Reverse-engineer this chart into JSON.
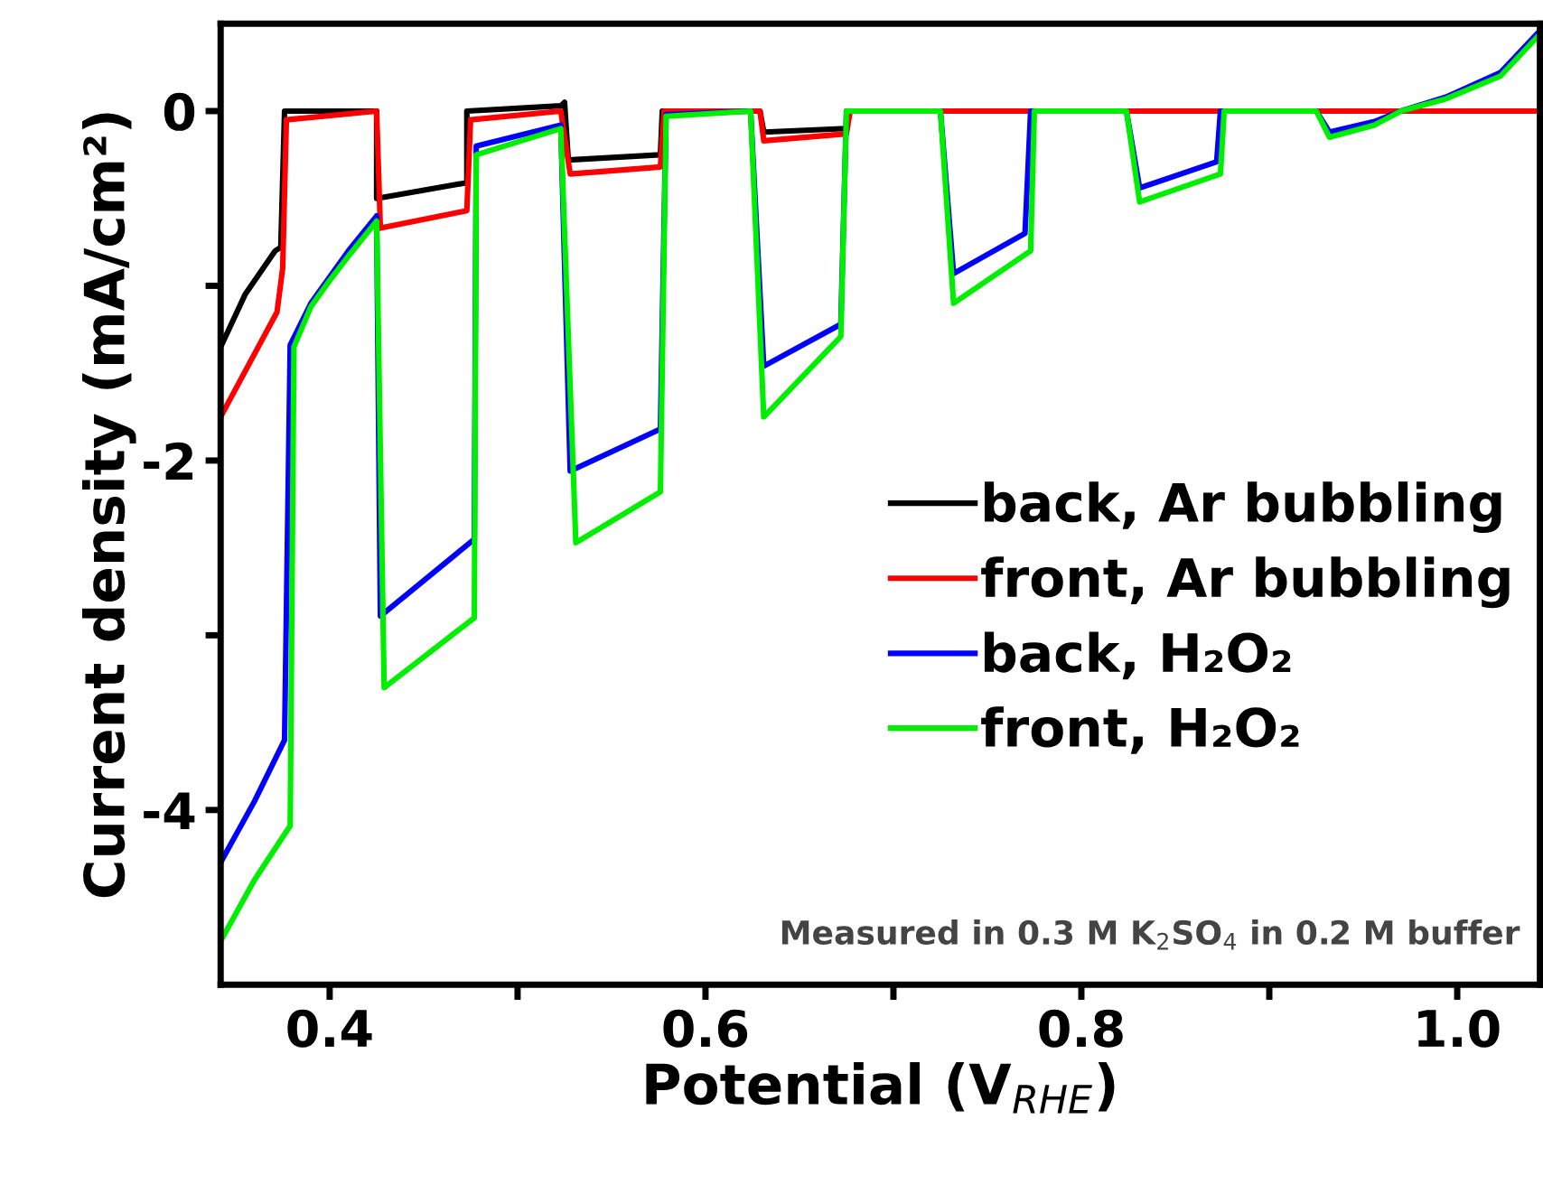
{
  "chart_data": {
    "type": "line",
    "xlabel": "Potential (V$_{RHE}$)",
    "ylabel": "Current density (mA/cm²)",
    "xlim": [
      0.342,
      1.044
    ],
    "ylim": [
      -5,
      0.5
    ],
    "xticks": [
      {
        "value": 0.4,
        "label": "0.4"
      },
      {
        "value": 0.5,
        "label": null
      },
      {
        "value": 0.6,
        "label": "0.6"
      },
      {
        "value": 0.7,
        "label": null
      },
      {
        "value": 0.8,
        "label": "0.8"
      },
      {
        "value": 0.9,
        "label": null
      },
      {
        "value": 1.0,
        "label": "1.0"
      }
    ],
    "yticks": [
      {
        "value": 0,
        "label": "0"
      },
      {
        "value": -1,
        "label": null
      },
      {
        "value": -2,
        "label": "-2"
      },
      {
        "value": -3,
        "label": null
      },
      {
        "value": -4,
        "label": "-4"
      }
    ],
    "grid": false,
    "legend": "right",
    "marker": "none",
    "line_style": "solid",
    "annotations": [
      "Measured in 0.3 M K$_{2}$SO$_{4}$ in 0.2 M buffer"
    ],
    "series": [
      {
        "name": "back, Ar bubbling",
        "color": "#000000",
        "x": [
          0.342,
          0.355,
          0.371,
          0.374,
          0.376,
          0.425,
          0.425,
          0.473,
          0.473,
          0.523,
          0.525,
          0.527,
          0.576,
          0.577,
          0.629,
          0.631,
          0.675,
          0.676,
          1.044
        ],
        "values": [
          -1.35,
          -1.05,
          -0.8,
          -0.78,
          0,
          0,
          -0.5,
          -0.41,
          0,
          0.03,
          0.05,
          -0.28,
          -0.25,
          0,
          0,
          -0.12,
          -0.1,
          0,
          0
        ]
      },
      {
        "name": "front, Ar bubbling",
        "color": "#ff0000",
        "x": [
          0.342,
          0.372,
          0.375,
          0.377,
          0.425,
          0.427,
          0.473,
          0.475,
          0.523,
          0.528,
          0.576,
          0.578,
          0.629,
          0.631,
          0.675,
          0.677,
          1.044
        ],
        "values": [
          -1.75,
          -1.15,
          -0.9,
          -0.05,
          0,
          -0.67,
          -0.57,
          -0.05,
          0,
          -0.36,
          -0.32,
          0,
          0,
          -0.17,
          -0.13,
          0,
          0
        ]
      },
      {
        "name": "back, H₂O₂",
        "color": "#0000ff",
        "x": [
          0.342,
          0.36,
          0.376,
          0.379,
          0.39,
          0.4,
          0.41,
          0.425,
          0.427,
          0.477,
          0.478,
          0.523,
          0.528,
          0.576,
          0.579,
          0.624,
          0.631,
          0.672,
          0.675,
          0.725,
          0.732,
          0.77,
          0.773,
          0.824,
          0.831,
          0.872,
          0.874,
          0.925,
          0.932,
          0.956,
          0.97,
          0.994,
          1.023,
          1.044
        ],
        "values": [
          -4.3,
          -3.95,
          -3.6,
          -1.34,
          -1.1,
          -0.95,
          -0.8,
          -0.6,
          -2.89,
          -2.45,
          -0.2,
          -0.08,
          -2.06,
          -1.82,
          -0.02,
          0,
          -1.46,
          -1.22,
          0,
          0,
          -0.93,
          -0.7,
          0,
          0,
          -0.44,
          -0.29,
          0,
          0,
          -0.12,
          -0.06,
          0,
          0.08,
          0.22,
          0.46
        ]
      },
      {
        "name": "front, H₂O₂",
        "color": "#00ee00",
        "x": [
          0.342,
          0.36,
          0.379,
          0.381,
          0.39,
          0.4,
          0.41,
          0.425,
          0.429,
          0.477,
          0.478,
          0.523,
          0.531,
          0.576,
          0.579,
          0.624,
          0.631,
          0.672,
          0.675,
          0.725,
          0.732,
          0.773,
          0.775,
          0.824,
          0.831,
          0.874,
          0.876,
          0.925,
          0.932,
          0.956,
          0.97,
          0.994,
          1.023,
          1.044
        ],
        "values": [
          -4.75,
          -4.4,
          -4.09,
          -1.35,
          -1.12,
          -0.97,
          -0.83,
          -0.63,
          -3.3,
          -2.9,
          -0.25,
          -0.1,
          -2.47,
          -2.18,
          -0.03,
          0,
          -1.75,
          -1.29,
          0,
          0,
          -1.1,
          -0.8,
          0,
          0,
          -0.52,
          -0.36,
          0,
          0,
          -0.15,
          -0.08,
          0,
          0.07,
          0.2,
          0.44
        ]
      }
    ]
  }
}
